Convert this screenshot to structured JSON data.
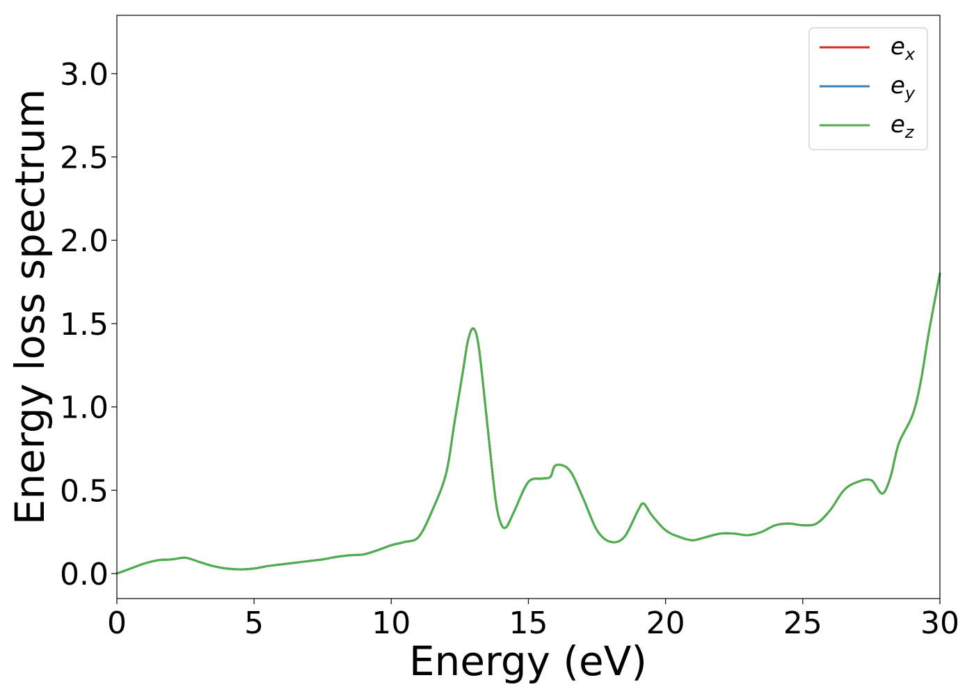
{
  "chart_data": {
    "type": "line",
    "title": "",
    "xlabel": "Energy (eV)",
    "ylabel": "Energy loss spectrum",
    "xlim": [
      0,
      30
    ],
    "ylim": [
      -0.15,
      3.35
    ],
    "xticks": [
      0,
      5,
      10,
      15,
      20,
      25,
      30
    ],
    "xtick_labels": [
      "0",
      "5",
      "10",
      "15",
      "20",
      "25",
      "30"
    ],
    "yticks": [
      0.0,
      0.5,
      1.0,
      1.5,
      2.0,
      2.5,
      3.0
    ],
    "ytick_labels": [
      "0.0",
      "0.5",
      "1.0",
      "1.5",
      "2.0",
      "2.5",
      "3.0"
    ],
    "grid": false,
    "legend_position": "top-right",
    "x": [
      0,
      0.5,
      1.0,
      1.5,
      2.0,
      2.5,
      3.0,
      3.5,
      4.0,
      4.5,
      5.0,
      5.5,
      6.0,
      6.5,
      7.0,
      7.5,
      8.0,
      8.5,
      9.0,
      9.5,
      10.0,
      10.5,
      11.0,
      11.5,
      12.0,
      12.3,
      12.6,
      12.8,
      13.0,
      13.2,
      13.5,
      13.8,
      14.0,
      14.2,
      14.5,
      15.0,
      15.5,
      15.8,
      16.0,
      16.5,
      17.0,
      17.5,
      18.0,
      18.5,
      19.0,
      19.2,
      19.5,
      20.0,
      20.5,
      21.0,
      21.5,
      22.0,
      22.5,
      23.0,
      23.5,
      24.0,
      24.5,
      25.0,
      25.5,
      26.0,
      26.5,
      27.0,
      27.5,
      27.9,
      28.2,
      28.5,
      29.0,
      29.3,
      29.6,
      30.0
    ],
    "series": [
      {
        "name": "e_x",
        "label_base": "e",
        "label_sub": "x",
        "color": "#d62728",
        "values": [
          0.0,
          0.03,
          0.06,
          0.08,
          0.085,
          0.095,
          0.07,
          0.045,
          0.03,
          0.025,
          0.03,
          0.045,
          0.055,
          0.065,
          0.075,
          0.085,
          0.1,
          0.11,
          0.115,
          0.14,
          0.17,
          0.19,
          0.22,
          0.38,
          0.6,
          0.9,
          1.2,
          1.4,
          1.47,
          1.35,
          0.9,
          0.45,
          0.3,
          0.28,
          0.38,
          0.55,
          0.57,
          0.58,
          0.65,
          0.62,
          0.45,
          0.26,
          0.19,
          0.22,
          0.38,
          0.42,
          0.35,
          0.26,
          0.22,
          0.2,
          0.22,
          0.24,
          0.24,
          0.23,
          0.25,
          0.29,
          0.3,
          0.29,
          0.3,
          0.38,
          0.5,
          0.55,
          0.56,
          0.48,
          0.58,
          0.78,
          0.95,
          1.15,
          1.45,
          1.8
        ]
      },
      {
        "name": "e_y",
        "label_base": "e",
        "label_sub": "y",
        "color": "#3a7fb8",
        "values": [
          0.0,
          0.03,
          0.06,
          0.08,
          0.085,
          0.095,
          0.07,
          0.045,
          0.03,
          0.025,
          0.03,
          0.045,
          0.055,
          0.065,
          0.075,
          0.085,
          0.1,
          0.11,
          0.115,
          0.14,
          0.17,
          0.19,
          0.22,
          0.38,
          0.6,
          0.9,
          1.2,
          1.4,
          1.47,
          1.35,
          0.9,
          0.45,
          0.3,
          0.28,
          0.38,
          0.55,
          0.57,
          0.58,
          0.65,
          0.62,
          0.45,
          0.26,
          0.19,
          0.22,
          0.38,
          0.42,
          0.35,
          0.26,
          0.22,
          0.2,
          0.22,
          0.24,
          0.24,
          0.23,
          0.25,
          0.29,
          0.3,
          0.29,
          0.3,
          0.38,
          0.5,
          0.55,
          0.56,
          0.48,
          0.58,
          0.78,
          0.95,
          1.15,
          1.45,
          1.8
        ]
      },
      {
        "name": "e_z",
        "label_base": "e",
        "label_sub": "z",
        "color": "#4daf4a",
        "values": [
          0.0,
          0.03,
          0.06,
          0.08,
          0.085,
          0.095,
          0.07,
          0.045,
          0.03,
          0.025,
          0.03,
          0.045,
          0.055,
          0.065,
          0.075,
          0.085,
          0.1,
          0.11,
          0.115,
          0.14,
          0.17,
          0.19,
          0.22,
          0.38,
          0.6,
          0.9,
          1.2,
          1.4,
          1.47,
          1.35,
          0.9,
          0.45,
          0.3,
          0.28,
          0.38,
          0.55,
          0.57,
          0.58,
          0.65,
          0.62,
          0.45,
          0.26,
          0.19,
          0.22,
          0.38,
          0.42,
          0.35,
          0.26,
          0.22,
          0.2,
          0.22,
          0.24,
          0.24,
          0.23,
          0.25,
          0.29,
          0.3,
          0.29,
          0.3,
          0.38,
          0.5,
          0.55,
          0.56,
          0.48,
          0.58,
          0.78,
          0.95,
          1.15,
          1.45,
          1.8
        ]
      }
    ]
  }
}
